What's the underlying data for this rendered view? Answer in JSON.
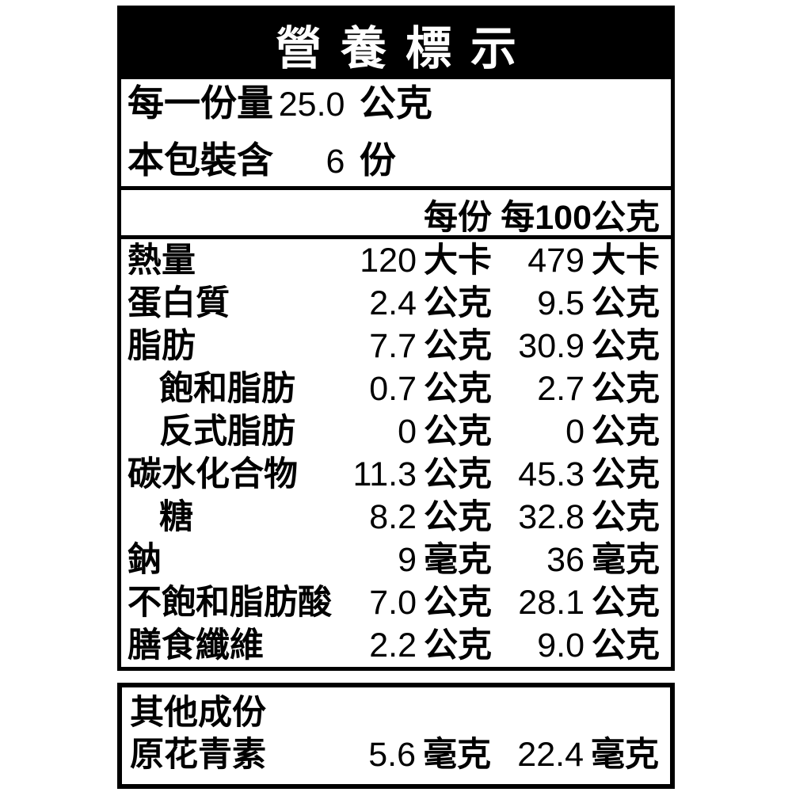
{
  "label": {
    "title": "營養標示",
    "serving_size": {
      "label": "每一份量",
      "value": "25.0",
      "unit": "公克"
    },
    "servings": {
      "label": "本包裝含",
      "value": "6",
      "unit": "份"
    },
    "columns": {
      "per_serving": "每份",
      "per_100g": "每100公克"
    },
    "rows": [
      {
        "name": "熱量",
        "per_serving": "120",
        "per_serving_unit": "大卡",
        "per_100g": "479",
        "per_100g_unit": "大卡"
      },
      {
        "name": "蛋白質",
        "per_serving": "2.4",
        "per_serving_unit": "公克",
        "per_100g": "9.5",
        "per_100g_unit": "公克"
      },
      {
        "name": "脂肪",
        "per_serving": "7.7",
        "per_serving_unit": "公克",
        "per_100g": "30.9",
        "per_100g_unit": "公克"
      },
      {
        "name": "飽和脂肪",
        "per_serving": "0.7",
        "per_serving_unit": "公克",
        "per_100g": "2.7",
        "per_100g_unit": "公克"
      },
      {
        "name": "反式脂肪",
        "per_serving": "0",
        "per_serving_unit": "公克",
        "per_100g": "0",
        "per_100g_unit": "公克"
      },
      {
        "name": "碳水化合物",
        "per_serving": "11.3",
        "per_serving_unit": "公克",
        "per_100g": "45.3",
        "per_100g_unit": "公克"
      },
      {
        "name": "糖",
        "per_serving": "8.2",
        "per_serving_unit": "公克",
        "per_100g": "32.8",
        "per_100g_unit": "公克"
      },
      {
        "name": "鈉",
        "per_serving": "9",
        "per_serving_unit": "毫克",
        "per_100g": "36",
        "per_100g_unit": "毫克"
      },
      {
        "name": "不飽和脂肪酸",
        "per_serving": "7.0",
        "per_serving_unit": "公克",
        "per_100g": "28.1",
        "per_100g_unit": "公克"
      },
      {
        "name": "膳食纖維",
        "per_serving": "2.2",
        "per_serving_unit": "公克",
        "per_100g": "9.0",
        "per_100g_unit": "公克"
      }
    ],
    "other_section": {
      "title": "其他成份",
      "rows": [
        {
          "name": "原花青素",
          "per_serving": "5.6",
          "per_serving_unit": "毫克",
          "per_100g": "22.4",
          "per_100g_unit": "毫克"
        }
      ]
    },
    "colors": {
      "ink": "#000000",
      "background": "#ffffff"
    }
  }
}
